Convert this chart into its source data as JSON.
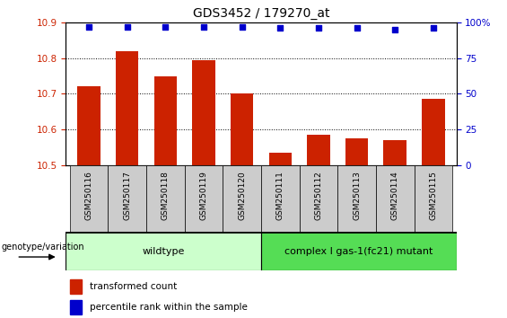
{
  "title": "GDS3452 / 179270_at",
  "samples": [
    "GSM250116",
    "GSM250117",
    "GSM250118",
    "GSM250119",
    "GSM250120",
    "GSM250111",
    "GSM250112",
    "GSM250113",
    "GSM250114",
    "GSM250115"
  ],
  "bar_values": [
    10.72,
    10.82,
    10.75,
    10.795,
    10.7,
    10.535,
    10.585,
    10.575,
    10.57,
    10.685
  ],
  "percentile_values": [
    97,
    97,
    97,
    97,
    97,
    96,
    96,
    96,
    95,
    96
  ],
  "ylim_left": [
    10.5,
    10.9
  ],
  "ylim_right": [
    0,
    100
  ],
  "yticks_left": [
    10.5,
    10.6,
    10.7,
    10.8,
    10.9
  ],
  "yticks_right": [
    0,
    25,
    50,
    75,
    100
  ],
  "bar_color": "#cc2200",
  "dot_color": "#0000cc",
  "group1_label": "wildtype",
  "group2_label": "complex I gas-1(fc21) mutant",
  "group1_indices": [
    0,
    1,
    2,
    3,
    4
  ],
  "group2_indices": [
    5,
    6,
    7,
    8,
    9
  ],
  "group1_bg": "#ccffcc",
  "group2_bg": "#55dd55",
  "header_bg": "#cccccc",
  "legend_label1": "transformed count",
  "legend_label2": "percentile rank within the sample",
  "genotype_label": "genotype/variation",
  "right_axis_label": "%"
}
